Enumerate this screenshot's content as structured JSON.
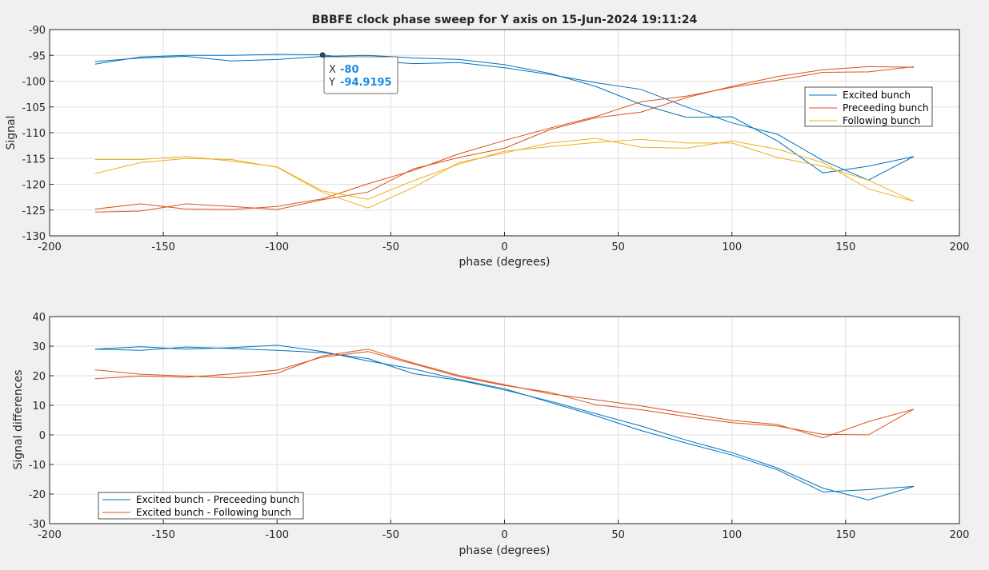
{
  "chart_data": [
    {
      "type": "line",
      "title": "BBBFE clock phase sweep for Y axis on 15-Jun-2024 19:11:24",
      "xlabel": "phase (degrees)",
      "ylabel": "Signal",
      "xlim": [
        -200,
        200
      ],
      "ylim": [
        -130,
        -90
      ],
      "xticks": [
        -200,
        -150,
        -100,
        -50,
        0,
        50,
        100,
        150,
        200
      ],
      "yticks": [
        -130,
        -125,
        -120,
        -115,
        -110,
        -105,
        -100,
        -95,
        -90
      ],
      "grid": true,
      "legend_position": "top-right",
      "x": [
        -180,
        -160,
        -140,
        -120,
        -100,
        -80,
        -60,
        -40,
        -20,
        0,
        20,
        40,
        60,
        80,
        100,
        120,
        140,
        160,
        180
      ],
      "series": [
        {
          "name": "Excited bunch",
          "color": "#0072bd",
          "sweeps": [
            [
              -96.2,
              -95.5,
              -95.2,
              -96.1,
              -95.8,
              -95.2,
              -95.0,
              -95.5,
              -95.8,
              -96.8,
              -98.5,
              -101.0,
              -104.5,
              -107.0,
              -106.9,
              -111.6,
              -117.8,
              -116.5,
              -114.6
            ],
            [
              -96.7,
              -95.3,
              -95.0,
              -95.0,
              -94.8,
              -94.9,
              -96.0,
              -96.6,
              -96.4,
              -97.4,
              -98.7,
              -100.3,
              -101.6,
              -105.0,
              -108.1,
              -110.3,
              -115.4,
              -119.2,
              -114.6
            ]
          ]
        },
        {
          "name": "Preceeding bunch",
          "color": "#d95319",
          "sweeps": [
            [
              -125.4,
              -125.2,
              -123.8,
              -124.3,
              -124.9,
              -123.0,
              -121.5,
              -117.0,
              -114.8,
              -113.0,
              -109.4,
              -107.1,
              -106.0,
              -103.2,
              -101.0,
              -99.1,
              -97.8,
              -97.2,
              -97.3
            ],
            [
              -124.8,
              -123.8,
              -124.8,
              -124.9,
              -124.3,
              -122.8,
              -119.9,
              -117.3,
              -114.1,
              -111.5,
              -109.1,
              -106.9,
              -104.0,
              -102.9,
              -101.2,
              -99.8,
              -98.3,
              -98.2,
              -97.2
            ]
          ]
        },
        {
          "name": "Following bunch",
          "color": "#edb120",
          "sweeps": [
            [
              -115.2,
              -115.2,
              -114.6,
              -115.5,
              -116.6,
              -121.3,
              -122.9,
              -119.3,
              -116.1,
              -113.6,
              -112.7,
              -111.9,
              -111.3,
              -112.0,
              -112.0,
              -114.8,
              -116.5,
              -119.2,
              -123.3
            ],
            [
              -117.9,
              -115.8,
              -115.0,
              -115.2,
              -116.7,
              -121.6,
              -124.6,
              -120.6,
              -115.8,
              -113.9,
              -112.0,
              -111.1,
              -112.8,
              -113.0,
              -111.6,
              -113.2,
              -115.8,
              -120.9,
              -123.3
            ]
          ]
        }
      ]
    },
    {
      "type": "line",
      "title": "",
      "xlabel": "phase (degrees)",
      "ylabel": "Signal differences",
      "xlim": [
        -200,
        200
      ],
      "ylim": [
        -30,
        40
      ],
      "xticks": [
        -200,
        -150,
        -100,
        -50,
        0,
        50,
        100,
        150,
        200
      ],
      "yticks": [
        -30,
        -20,
        -10,
        0,
        10,
        20,
        30,
        40
      ],
      "grid": true,
      "legend_position": "bottom-left",
      "x": [
        -180,
        -160,
        -140,
        -120,
        -100,
        -80,
        -60,
        -40,
        -20,
        0,
        20,
        40,
        60,
        80,
        100,
        120,
        140,
        160,
        180
      ],
      "series": [
        {
          "name": "Excited bunch - Preceeding bunch",
          "color": "#0072bd",
          "sweeps": [
            [
              29.0,
              28.6,
              29.7,
              29.2,
              28.6,
              27.8,
              25.8,
              20.7,
              18.5,
              15.2,
              11.4,
              7.2,
              3.0,
              -1.8,
              -6.0,
              -11.2,
              -18.0,
              -22.0,
              -17.4
            ],
            [
              29.0,
              29.8,
              29.0,
              29.5,
              30.3,
              28.2,
              25.0,
              22.3,
              18.7,
              15.6,
              11.0,
              6.5,
              1.5,
              -2.8,
              -6.8,
              -11.8,
              -19.3,
              -18.5,
              -17.4
            ]
          ]
        },
        {
          "name": "Excited bunch - Following bunch",
          "color": "#d95319",
          "sweeps": [
            [
              19.0,
              19.9,
              19.5,
              20.6,
              21.9,
              26.3,
              28.2,
              24.0,
              19.7,
              16.7,
              14.4,
              10.2,
              8.5,
              6.2,
              4.1,
              3.0,
              0.2,
              0.0,
              8.7
            ],
            [
              22.0,
              20.5,
              19.9,
              19.3,
              20.8,
              26.7,
              29.0,
              24.3,
              20.1,
              17.0,
              13.9,
              11.9,
              9.8,
              7.3,
              4.9,
              3.5,
              -1.0,
              4.5,
              8.7
            ]
          ]
        }
      ]
    }
  ],
  "datatip": {
    "x_key": "X",
    "x_value": "-80",
    "y_key": "Y",
    "y_value": "-94.9195",
    "point": [
      -80,
      -94.9195
    ]
  },
  "colors": {
    "figure_bg": "#f0f0f0",
    "axes_bg": "#ffffff",
    "grid": "#dfdfdf",
    "axis": "#262626"
  }
}
